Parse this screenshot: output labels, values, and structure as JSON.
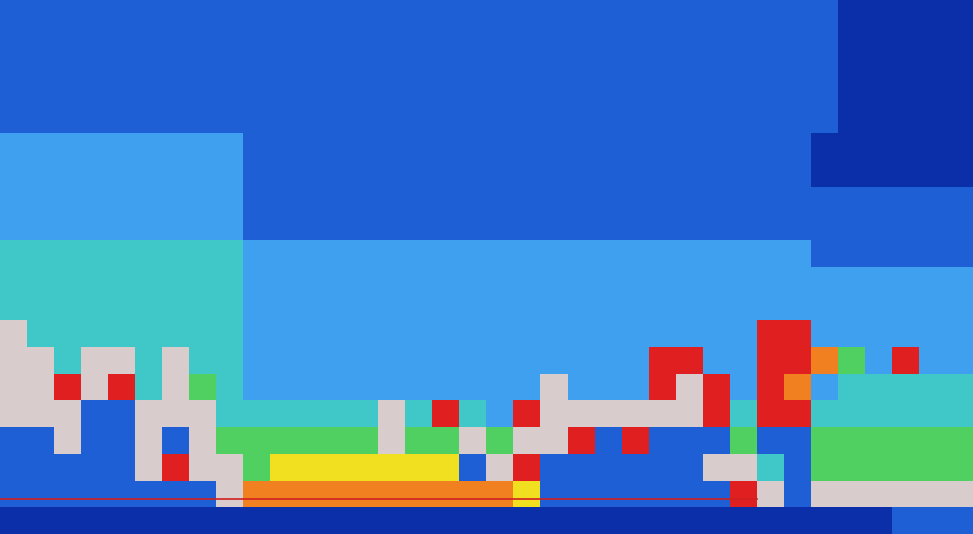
{
  "chart_data": {
    "type": "heatmap",
    "tick_labels": false,
    "xlim": [
      -0.5,
      35.5
    ],
    "ylim": [
      19.5,
      -0.5
    ],
    "colors": [
      "#03167e",
      "#0a2fa8",
      "#1f5fd6",
      "#3fa0f0",
      "#40c8c8",
      "#50d060",
      "#f0e020",
      "#f08020",
      "#e02020",
      "#d8cccc"
    ],
    "cells": [
      [
        2,
        2,
        2,
        2,
        2,
        2,
        2,
        2,
        2,
        2,
        2,
        2,
        2,
        2,
        2,
        2,
        2,
        2,
        2,
        2,
        2,
        2,
        2,
        2,
        2,
        2,
        2,
        2,
        2,
        2,
        2,
        1,
        1,
        1,
        1,
        1
      ],
      [
        2,
        2,
        2,
        2,
        2,
        2,
        2,
        2,
        2,
        2,
        2,
        2,
        2,
        2,
        2,
        2,
        2,
        2,
        2,
        2,
        2,
        2,
        2,
        2,
        2,
        2,
        2,
        2,
        2,
        2,
        2,
        1,
        1,
        1,
        1,
        1
      ],
      [
        2,
        2,
        2,
        2,
        2,
        2,
        2,
        2,
        2,
        2,
        2,
        2,
        2,
        2,
        2,
        2,
        2,
        2,
        2,
        2,
        2,
        2,
        2,
        2,
        2,
        2,
        2,
        2,
        2,
        2,
        2,
        1,
        1,
        1,
        1,
        1
      ],
      [
        2,
        2,
        2,
        2,
        2,
        2,
        2,
        2,
        2,
        2,
        2,
        2,
        2,
        2,
        2,
        2,
        2,
        2,
        2,
        2,
        2,
        2,
        2,
        2,
        2,
        2,
        2,
        2,
        2,
        2,
        2,
        1,
        1,
        1,
        1,
        1
      ],
      [
        2,
        2,
        2,
        2,
        2,
        2,
        2,
        2,
        2,
        2,
        2,
        2,
        2,
        2,
        2,
        2,
        2,
        2,
        2,
        2,
        2,
        2,
        2,
        2,
        2,
        2,
        2,
        2,
        2,
        2,
        2,
        1,
        1,
        1,
        1,
        1
      ],
      [
        3,
        3,
        3,
        3,
        3,
        3,
        3,
        3,
        3,
        2,
        2,
        2,
        2,
        2,
        2,
        2,
        2,
        2,
        2,
        2,
        2,
        2,
        2,
        2,
        2,
        2,
        2,
        2,
        2,
        2,
        1,
        1,
        1,
        1,
        1,
        1
      ],
      [
        3,
        3,
        3,
        3,
        3,
        3,
        3,
        3,
        3,
        2,
        2,
        2,
        2,
        2,
        2,
        2,
        2,
        2,
        2,
        2,
        2,
        2,
        2,
        2,
        2,
        2,
        2,
        2,
        2,
        2,
        1,
        1,
        1,
        1,
        1,
        1
      ],
      [
        3,
        3,
        3,
        3,
        3,
        3,
        3,
        3,
        3,
        2,
        2,
        2,
        2,
        2,
        2,
        2,
        2,
        2,
        2,
        2,
        2,
        2,
        2,
        2,
        2,
        2,
        2,
        2,
        2,
        2,
        2,
        2,
        2,
        2,
        2,
        2
      ],
      [
        3,
        3,
        3,
        3,
        3,
        3,
        3,
        3,
        3,
        2,
        2,
        2,
        2,
        2,
        2,
        2,
        2,
        2,
        2,
        2,
        2,
        2,
        2,
        2,
        2,
        2,
        2,
        2,
        2,
        2,
        2,
        2,
        2,
        2,
        2,
        2
      ],
      [
        4,
        4,
        4,
        4,
        4,
        4,
        4,
        4,
        4,
        3,
        3,
        3,
        3,
        3,
        3,
        3,
        3,
        3,
        3,
        3,
        3,
        3,
        3,
        3,
        3,
        3,
        3,
        3,
        3,
        3,
        2,
        2,
        2,
        2,
        2,
        2
      ],
      [
        4,
        4,
        4,
        4,
        4,
        4,
        4,
        4,
        4,
        3,
        3,
        3,
        3,
        3,
        3,
        3,
        3,
        3,
        3,
        3,
        3,
        3,
        3,
        3,
        3,
        3,
        3,
        3,
        3,
        3,
        3,
        3,
        3,
        3,
        3,
        3
      ],
      [
        4,
        4,
        4,
        4,
        4,
        4,
        4,
        4,
        4,
        3,
        3,
        3,
        3,
        3,
        3,
        3,
        3,
        3,
        3,
        3,
        3,
        3,
        3,
        3,
        3,
        3,
        3,
        3,
        3,
        3,
        3,
        3,
        3,
        3,
        3,
        3
      ],
      [
        9,
        4,
        4,
        4,
        4,
        4,
        4,
        4,
        4,
        3,
        3,
        3,
        3,
        3,
        3,
        3,
        3,
        3,
        3,
        3,
        3,
        3,
        3,
        3,
        3,
        3,
        3,
        3,
        8,
        8,
        3,
        3,
        3,
        3,
        3,
        3
      ],
      [
        9,
        9,
        4,
        9,
        9,
        4,
        9,
        4,
        4,
        3,
        3,
        3,
        3,
        3,
        3,
        3,
        3,
        3,
        3,
        3,
        3,
        3,
        3,
        3,
        8,
        8,
        3,
        3,
        8,
        8,
        7,
        5,
        3,
        8,
        3,
        3
      ],
      [
        9,
        9,
        8,
        9,
        8,
        4,
        9,
        5,
        4,
        3,
        3,
        3,
        3,
        3,
        3,
        3,
        3,
        3,
        3,
        3,
        9,
        3,
        3,
        3,
        8,
        9,
        8,
        3,
        8,
        7,
        3,
        4,
        4,
        4,
        4,
        4
      ],
      [
        9,
        9,
        9,
        2,
        2,
        9,
        9,
        9,
        4,
        4,
        4,
        4,
        4,
        4,
        9,
        4,
        8,
        4,
        3,
        8,
        9,
        9,
        9,
        9,
        9,
        9,
        8,
        4,
        8,
        8,
        4,
        4,
        4,
        4,
        4,
        4
      ],
      [
        2,
        2,
        9,
        2,
        2,
        9,
        2,
        9,
        5,
        5,
        5,
        5,
        5,
        5,
        9,
        5,
        5,
        9,
        5,
        9,
        9,
        8,
        2,
        8,
        2,
        2,
        2,
        5,
        2,
        2,
        5,
        5,
        5,
        5,
        5,
        5
      ],
      [
        2,
        2,
        2,
        2,
        2,
        9,
        8,
        9,
        9,
        5,
        6,
        6,
        6,
        6,
        6,
        6,
        6,
        2,
        9,
        8,
        2,
        2,
        2,
        2,
        2,
        2,
        9,
        9,
        4,
        2,
        5,
        5,
        5,
        5,
        5,
        5
      ],
      [
        2,
        2,
        2,
        2,
        2,
        2,
        2,
        2,
        9,
        7,
        7,
        7,
        7,
        7,
        7,
        7,
        7,
        7,
        7,
        6,
        2,
        2,
        2,
        2,
        2,
        2,
        2,
        8,
        9,
        2,
        9,
        9,
        9,
        9,
        9,
        9
      ],
      [
        1,
        1,
        1,
        1,
        1,
        1,
        1,
        1,
        1,
        1,
        1,
        1,
        1,
        1,
        1,
        1,
        1,
        1,
        1,
        1,
        1,
        1,
        1,
        1,
        1,
        1,
        1,
        1,
        1,
        1,
        1,
        1,
        1,
        2,
        2,
        2
      ]
    ],
    "bottom_line": {
      "x": [
        -0.5,
        27.5
      ],
      "y": [
        18.2,
        18.2
      ],
      "color": "#d02020"
    }
  }
}
